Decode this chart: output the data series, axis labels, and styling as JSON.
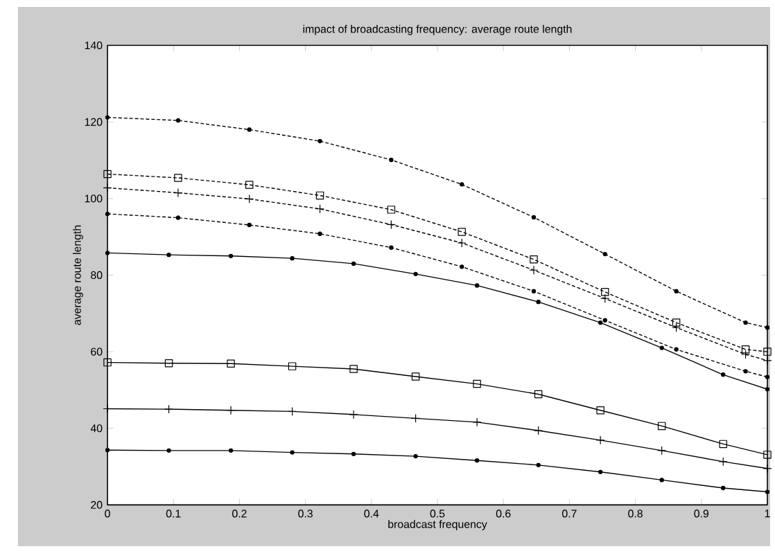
{
  "chart_data": {
    "type": "line",
    "title": "impact of broadcasting frequency: average route length",
    "xlabel": "broadcast frequency",
    "ylabel": "average route length",
    "xlim": [
      0,
      1
    ],
    "ylim": [
      20,
      140
    ],
    "xticks": [
      0,
      0.1,
      0.2,
      0.3,
      0.4,
      0.5,
      0.6,
      0.7,
      0.8,
      0.9,
      1
    ],
    "yticks": [
      20,
      40,
      60,
      80,
      100,
      120,
      140
    ],
    "series": [
      {
        "color": "#000000",
        "marker": "circle",
        "line_style": "dashed",
        "x": [
          0,
          0.107,
          0.215,
          0.322,
          0.43,
          0.537,
          0.646,
          0.754,
          0.862,
          0.967,
          1
        ],
        "values": [
          121.2,
          120.4,
          118,
          115,
          110.1,
          103.7,
          95.1,
          85.5,
          75.8,
          67.6,
          66.3
        ]
      },
      {
        "color": "#000000",
        "marker": "square",
        "line_style": "dashed",
        "x": [
          0,
          0.107,
          0.215,
          0.322,
          0.43,
          0.537,
          0.646,
          0.754,
          0.862,
          0.967,
          1
        ],
        "values": [
          106.4,
          105.4,
          103.6,
          100.8,
          97.1,
          91.3,
          84.1,
          75.6,
          67.6,
          60.6,
          60
        ]
      },
      {
        "color": "#000000",
        "marker": "cross",
        "line_style": "dashed",
        "x": [
          0,
          0.107,
          0.215,
          0.322,
          0.43,
          0.537,
          0.646,
          0.754,
          0.862,
          0.967,
          1
        ],
        "values": [
          102.8,
          101.5,
          99.9,
          97.3,
          93.2,
          88.4,
          81.3,
          73.9,
          66.3,
          59.3,
          57.7
        ]
      },
      {
        "color": "#000000",
        "marker": "circle",
        "line_style": "dashed",
        "x": [
          0,
          0.107,
          0.215,
          0.322,
          0.43,
          0.537,
          0.646,
          0.754,
          0.862,
          0.967,
          1
        ],
        "values": [
          96,
          95,
          93.1,
          90.8,
          87.2,
          82.2,
          75.8,
          68.2,
          60.6,
          54.9,
          53.4
        ]
      },
      {
        "color": "#000000",
        "marker": "circle",
        "line_style": "solid",
        "x": [
          0,
          0.093,
          0.187,
          0.28,
          0.373,
          0.467,
          0.56,
          0.653,
          0.747,
          0.84,
          0.933,
          1
        ],
        "values": [
          85.8,
          85.3,
          85,
          84.4,
          83,
          80.3,
          77.3,
          73,
          67.6,
          61,
          54,
          50.2
        ]
      },
      {
        "color": "#000000",
        "marker": "square",
        "line_style": "solid",
        "x": [
          0,
          0.093,
          0.187,
          0.28,
          0.373,
          0.467,
          0.56,
          0.653,
          0.747,
          0.84,
          0.933,
          1
        ],
        "values": [
          57.2,
          57,
          56.9,
          56.2,
          55.5,
          53.5,
          51.6,
          48.9,
          44.7,
          40.6,
          35.9,
          33.1
        ]
      },
      {
        "color": "#000000",
        "marker": "cross",
        "line_style": "solid",
        "x": [
          0,
          0.093,
          0.187,
          0.28,
          0.373,
          0.467,
          0.56,
          0.653,
          0.747,
          0.84,
          0.933,
          1
        ],
        "values": [
          45.1,
          45,
          44.7,
          44.4,
          43.6,
          42.6,
          41.6,
          39.4,
          36.9,
          34.2,
          31.3,
          29.5
        ]
      },
      {
        "color": "#000000",
        "marker": "circle",
        "line_style": "solid",
        "x": [
          0,
          0.093,
          0.187,
          0.28,
          0.373,
          0.467,
          0.56,
          0.653,
          0.747,
          0.84,
          0.933,
          1
        ],
        "values": [
          34.3,
          34.2,
          34.2,
          33.7,
          33.3,
          32.7,
          31.6,
          30.4,
          28.6,
          26.5,
          24.4,
          23.4
        ]
      }
    ]
  }
}
